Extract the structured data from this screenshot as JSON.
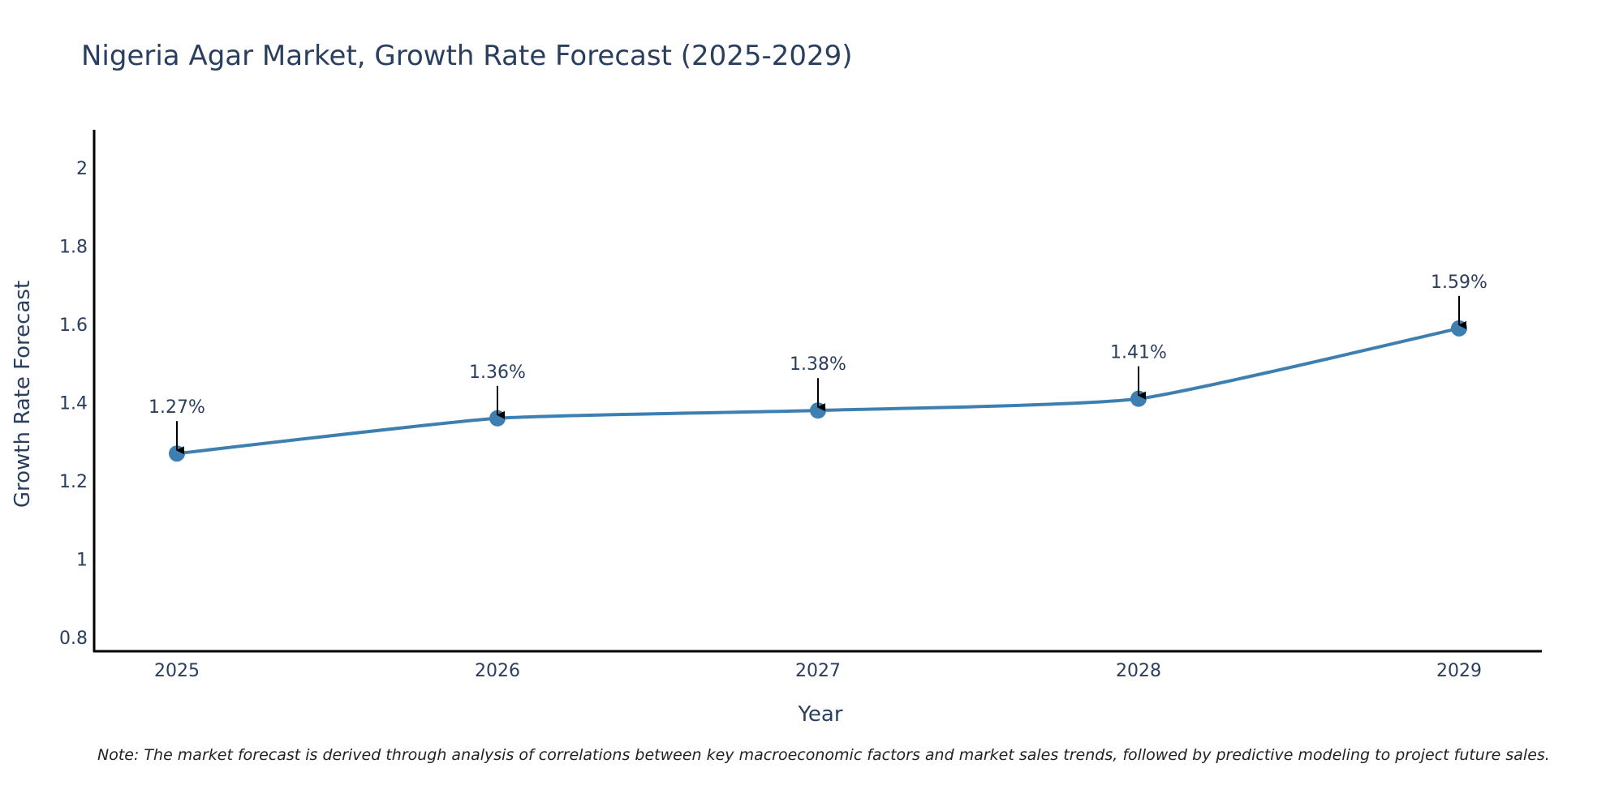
{
  "chart_data": {
    "type": "line",
    "title": "Nigeria Agar Market, Growth Rate Forecast (2025-2029)",
    "xlabel": "Year",
    "ylabel": "Growth Rate Forecast",
    "categories": [
      "2025",
      "2026",
      "2027",
      "2028",
      "2029"
    ],
    "series": [
      {
        "name": "Growth Rate Forecast",
        "values": [
          1.27,
          1.36,
          1.38,
          1.41,
          1.59
        ],
        "labels": [
          "1.27%",
          "1.36%",
          "1.38%",
          "1.41%",
          "1.59%"
        ],
        "color": "#3d7fb0"
      }
    ],
    "ylim": [
      0.77,
      2.09
    ],
    "yticks": [
      0.8,
      1,
      1.2,
      1.4,
      1.6,
      1.8,
      2
    ],
    "ytick_labels": [
      "0.8",
      "1",
      "1.2",
      "1.4",
      "1.6",
      "1.8",
      "2"
    ],
    "grid": false,
    "note": "Note: The market forecast is derived through analysis of correlations between key macroeconomic factors and market sales trends, followed by predictive modeling to project future sales."
  },
  "colors": {
    "line": "#3d7fb0",
    "text": "#2a3f5f",
    "axis": "#000000",
    "arrow": "#000000"
  }
}
